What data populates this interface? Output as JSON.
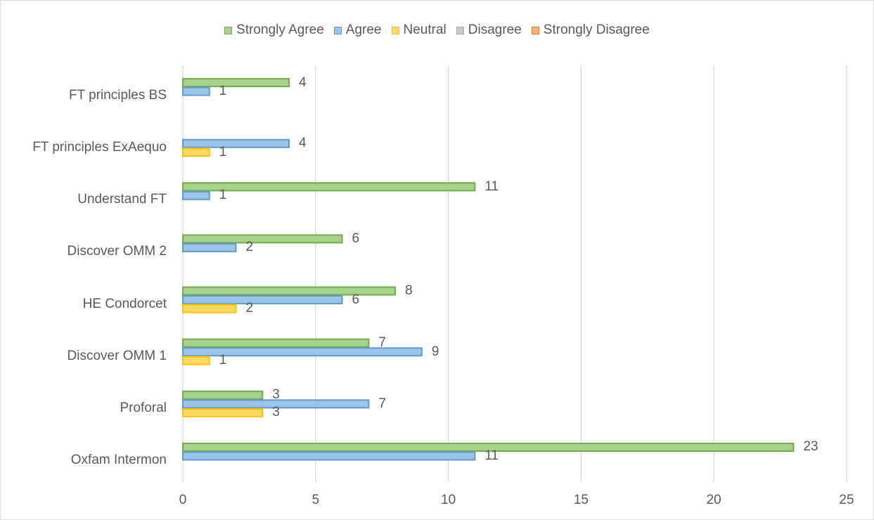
{
  "chart_data": {
    "type": "bar",
    "orientation": "horizontal",
    "title": "",
    "xlabel": "",
    "ylabel": "",
    "xlim": [
      0,
      25
    ],
    "xticks": [
      "0",
      "5",
      "10",
      "15",
      "20",
      "25"
    ],
    "grid": true,
    "legend_position": "top",
    "categories": [
      "FT principles BS",
      "FT principles ExAequo",
      "Understand FT",
      "Discover OMM 2",
      "HE Condorcet",
      "Discover OMM 1",
      "Proforal",
      "Oxfam Intermon"
    ],
    "series": [
      {
        "name": "Strongly Agree",
        "fill": "#a9d18e",
        "stroke": "#70ad47",
        "values": [
          4,
          null,
          11,
          6,
          8,
          7,
          3,
          23
        ]
      },
      {
        "name": "Agree",
        "fill": "#9dc3e6",
        "stroke": "#5b9bd5",
        "values": [
          1,
          4,
          1,
          2,
          6,
          9,
          7,
          11
        ]
      },
      {
        "name": "Neutral",
        "fill": "#ffd966",
        "stroke": "#ffc000",
        "values": [
          null,
          1,
          null,
          null,
          2,
          1,
          3,
          null
        ]
      },
      {
        "name": "Disagree",
        "fill": "#c9c9c9",
        "stroke": "#a5a5a5",
        "values": [
          null,
          null,
          null,
          null,
          null,
          null,
          null,
          null
        ]
      },
      {
        "name": "Strongly Disagree",
        "fill": "#f4b183",
        "stroke": "#ed7d31",
        "values": [
          null,
          null,
          null,
          null,
          null,
          null,
          null,
          null
        ]
      }
    ]
  }
}
